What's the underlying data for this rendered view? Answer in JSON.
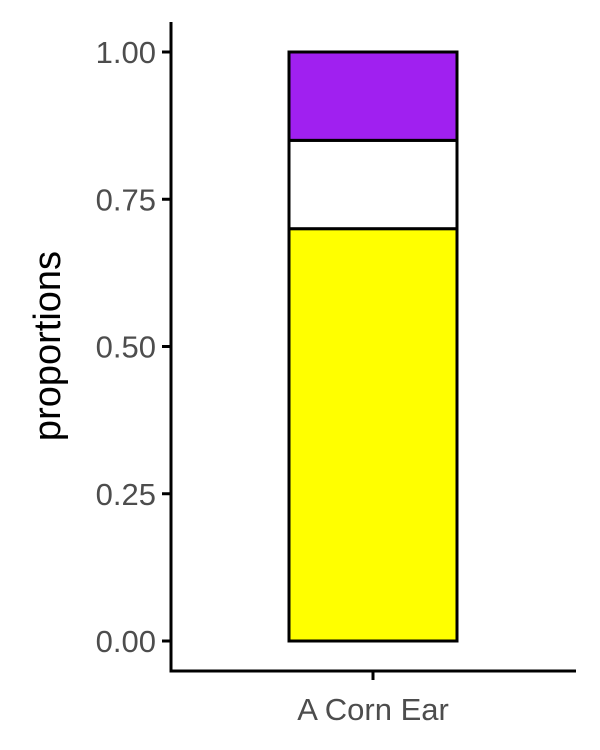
{
  "chart_data": {
    "type": "bar",
    "stacked": true,
    "title": "",
    "xlabel": "",
    "ylabel": "proportions",
    "ylim": [
      0,
      1
    ],
    "yticks": [
      0,
      0.25,
      0.5,
      0.75,
      1
    ],
    "ytick_labels": [
      "0.00",
      "0.25",
      "0.50",
      "0.75",
      "1.00"
    ],
    "categories": [
      "A Corn Ear"
    ],
    "series": [
      {
        "color": "#ffff00",
        "values": [
          0.7
        ]
      },
      {
        "color": "#ffffff",
        "values": [
          0.15
        ]
      },
      {
        "color": "#a020f0",
        "values": [
          0.15
        ]
      }
    ],
    "grid": false,
    "legend": "none"
  }
}
